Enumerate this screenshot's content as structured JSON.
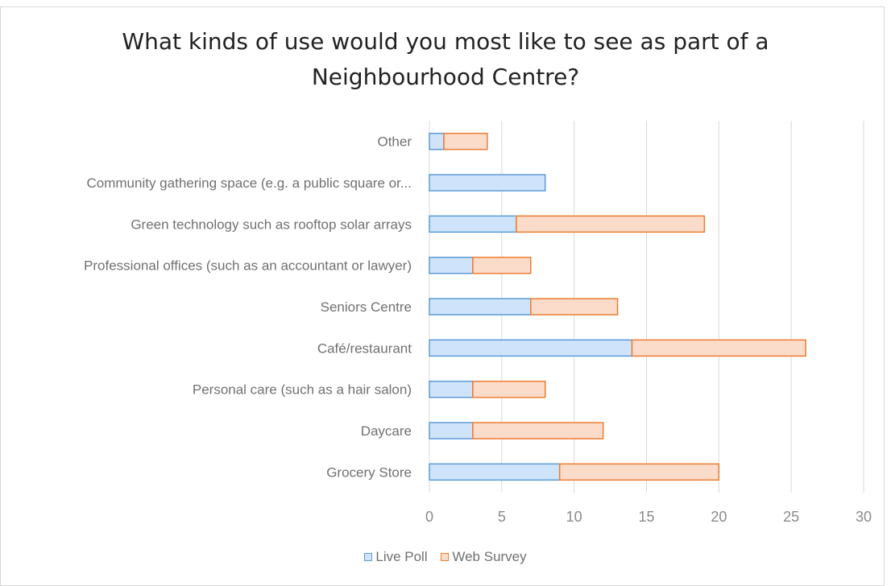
{
  "chart_data": {
    "type": "bar",
    "orientation": "horizontal",
    "stacked": true,
    "title_lines": [
      "What kinds of use would you most like to see as part of a",
      "Neighbourhood Centre?"
    ],
    "categories": [
      "Other",
      "Community gathering space (e.g. a public square or...",
      "Green technology such as rooftop solar arrays",
      "Professional offices (such as an accountant or lawyer)",
      "Seniors Centre",
      "Café/restaurant",
      "Personal care (such as a hair salon)",
      "Daycare",
      "Grocery Store"
    ],
    "series": [
      {
        "name": "Live Poll",
        "values": [
          1,
          8,
          6,
          3,
          7,
          14,
          3,
          3,
          9
        ],
        "fill": "#cfe3fb",
        "stroke": "#5b9bd5"
      },
      {
        "name": "Web Survey",
        "values": [
          3,
          0,
          13,
          4,
          6,
          12,
          5,
          9,
          11
        ],
        "fill": "#fbdccb",
        "stroke": "#ed7d31"
      }
    ],
    "xlim": [
      0,
      30
    ],
    "xticks": [
      0,
      5,
      10,
      15,
      20,
      25,
      30
    ],
    "grid": true,
    "legend_position": "bottom"
  }
}
